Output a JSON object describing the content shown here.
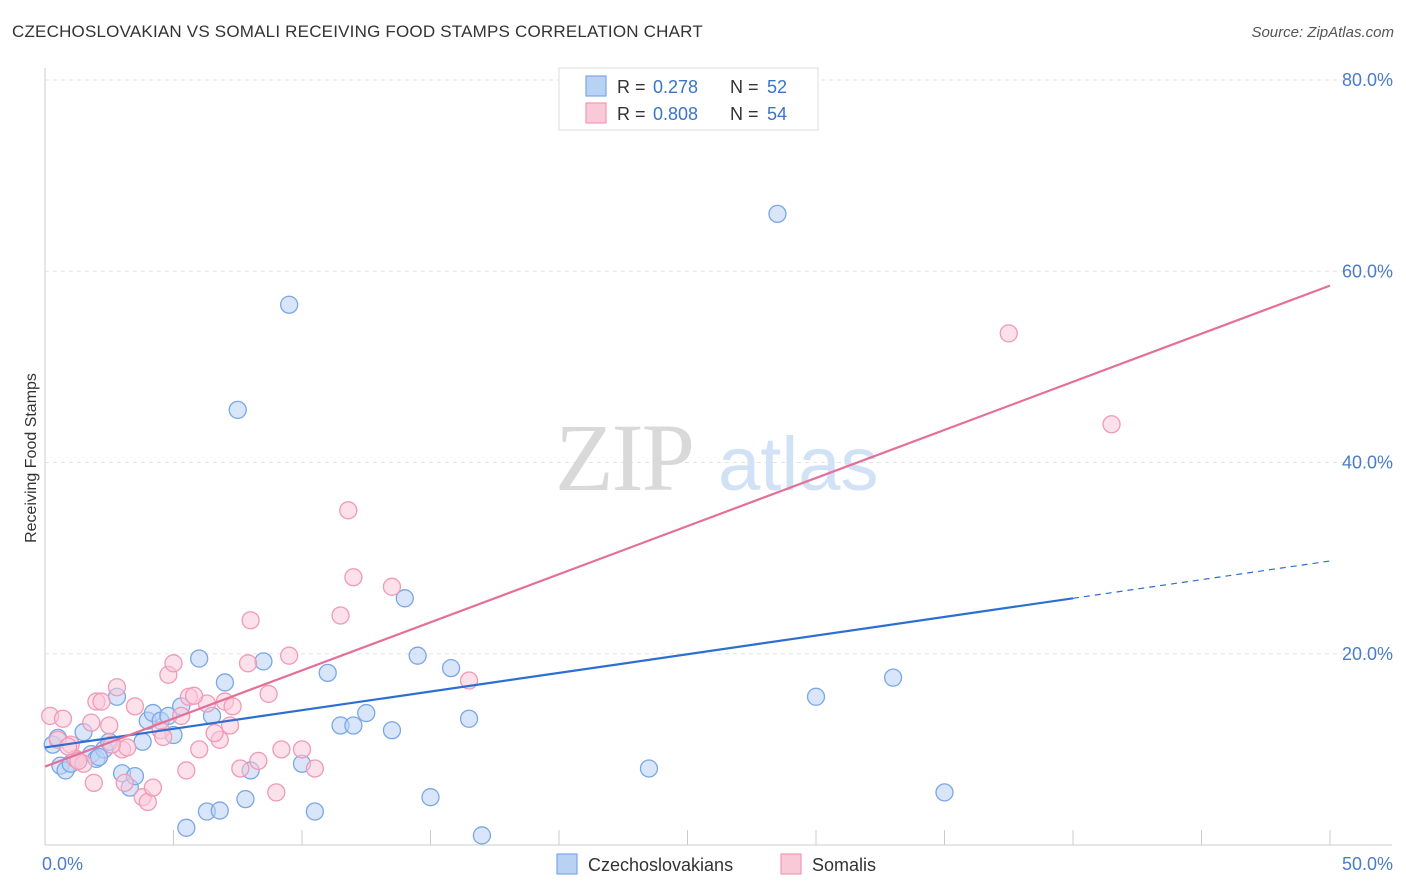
{
  "title": "CZECHOSLOVAKIAN VS SOMALI RECEIVING FOOD STAMPS CORRELATION CHART",
  "source": "Source: ZipAtlas.com",
  "watermark": {
    "zip": "ZIP",
    "atlas": "atlas"
  },
  "legend": {
    "series1": {
      "r_label": "R = ",
      "r_value": "0.278",
      "n_label": "N = ",
      "n_value": "52"
    },
    "series2": {
      "r_label": "R = ",
      "r_value": "0.808",
      "n_label": "N = ",
      "n_value": "54"
    }
  },
  "chart_data": {
    "type": "scatter",
    "title": "CZECHOSLOVAKIAN VS SOMALI RECEIVING FOOD STAMPS CORRELATION CHART",
    "xlabel": "",
    "ylabel": "Receiving Food Stamps",
    "xlim": [
      0,
      50
    ],
    "ylim": [
      0,
      80
    ],
    "x_tick_labels": [
      "0.0%",
      "50.0%"
    ],
    "y_tick_values": [
      20,
      40,
      60,
      80
    ],
    "y_tick_labels": [
      "20.0%",
      "40.0%",
      "60.0%",
      "80.0%"
    ],
    "grid": true,
    "legend_position": "top-center",
    "series": [
      {
        "name": "Czechoslovakians",
        "color": "#7aa7e6",
        "fill": "#b9d2f4",
        "trend_color": "#2c6fd1",
        "trend": {
          "x0": 0,
          "y0": 10.2,
          "x1": 40,
          "y1": 25.8,
          "dashed_to_x": 50,
          "dashed_to_y": 29.7
        },
        "points": [
          [
            0.3,
            10.5
          ],
          [
            0.5,
            11.2
          ],
          [
            0.6,
            8.3
          ],
          [
            0.8,
            7.8
          ],
          [
            1.0,
            8.5
          ],
          [
            1.2,
            9.0
          ],
          [
            1.5,
            11.8
          ],
          [
            1.8,
            9.5
          ],
          [
            2.0,
            9.0
          ],
          [
            2.3,
            10.0
          ],
          [
            2.5,
            10.8
          ],
          [
            2.8,
            15.5
          ],
          [
            3.0,
            7.5
          ],
          [
            3.3,
            6.0
          ],
          [
            3.5,
            7.2
          ],
          [
            3.8,
            10.8
          ],
          [
            4.0,
            13.0
          ],
          [
            4.2,
            13.8
          ],
          [
            4.5,
            13.0
          ],
          [
            4.8,
            13.5
          ],
          [
            5.0,
            11.5
          ],
          [
            5.3,
            14.5
          ],
          [
            6.0,
            19.5
          ],
          [
            6.5,
            13.5
          ],
          [
            7.0,
            17.0
          ],
          [
            7.5,
            45.5
          ],
          [
            8.0,
            7.8
          ],
          [
            8.5,
            19.2
          ],
          [
            9.5,
            56.5
          ],
          [
            10.0,
            8.5
          ],
          [
            10.5,
            3.5
          ],
          [
            11.0,
            18.0
          ],
          [
            11.5,
            12.5
          ],
          [
            12.0,
            12.5
          ],
          [
            12.5,
            13.8
          ],
          [
            13.5,
            12.0
          ],
          [
            14.0,
            25.8
          ],
          [
            14.5,
            19.8
          ],
          [
            15.0,
            5.0
          ],
          [
            15.8,
            18.5
          ],
          [
            16.5,
            13.2
          ],
          [
            17.0,
            1.0
          ],
          [
            5.5,
            1.8
          ],
          [
            6.3,
            3.5
          ],
          [
            6.8,
            3.6
          ],
          [
            7.8,
            4.8
          ],
          [
            23.5,
            8.0
          ],
          [
            28.5,
            66.0
          ],
          [
            30.0,
            15.5
          ],
          [
            33.0,
            17.5
          ],
          [
            35.0,
            5.5
          ],
          [
            2.1,
            9.2
          ]
        ]
      },
      {
        "name": "Somalis",
        "color": "#f09ab6",
        "fill": "#f9c9d8",
        "trend_color": "#e4709a",
        "trend": {
          "x0": 0,
          "y0": 8.2,
          "x1": 50,
          "y1": 58.5
        },
        "points": [
          [
            0.2,
            13.5
          ],
          [
            0.5,
            11.0
          ],
          [
            0.7,
            13.2
          ],
          [
            1.0,
            10.5
          ],
          [
            1.2,
            9.0
          ],
          [
            1.5,
            8.5
          ],
          [
            1.8,
            12.8
          ],
          [
            2.0,
            15.0
          ],
          [
            2.2,
            15.0
          ],
          [
            2.5,
            12.5
          ],
          [
            2.8,
            16.5
          ],
          [
            3.0,
            10.0
          ],
          [
            3.2,
            10.2
          ],
          [
            3.5,
            14.5
          ],
          [
            3.8,
            5.0
          ],
          [
            4.0,
            4.5
          ],
          [
            4.2,
            6.0
          ],
          [
            4.5,
            12.0
          ],
          [
            4.8,
            17.8
          ],
          [
            5.0,
            19.0
          ],
          [
            5.3,
            13.5
          ],
          [
            5.6,
            15.5
          ],
          [
            6.0,
            10.0
          ],
          [
            6.3,
            14.8
          ],
          [
            6.8,
            11.0
          ],
          [
            7.0,
            15.0
          ],
          [
            7.3,
            14.5
          ],
          [
            7.6,
            8.0
          ],
          [
            7.9,
            19.0
          ],
          [
            8.0,
            23.5
          ],
          [
            8.3,
            8.8
          ],
          [
            8.7,
            15.8
          ],
          [
            9.2,
            10.0
          ],
          [
            9.5,
            19.8
          ],
          [
            10.0,
            10.0
          ],
          [
            10.5,
            8.0
          ],
          [
            11.5,
            24.0
          ],
          [
            11.8,
            35.0
          ],
          [
            12.0,
            28.0
          ],
          [
            13.5,
            27.0
          ],
          [
            3.1,
            6.5
          ],
          [
            4.6,
            11.3
          ],
          [
            5.8,
            15.6
          ],
          [
            2.6,
            10.5
          ],
          [
            1.3,
            8.8
          ],
          [
            1.9,
            6.5
          ],
          [
            6.6,
            11.7
          ],
          [
            7.2,
            12.5
          ],
          [
            9.0,
            5.5
          ],
          [
            16.5,
            17.2
          ],
          [
            37.5,
            53.5
          ],
          [
            41.5,
            44.0
          ],
          [
            0.9,
            10.3
          ],
          [
            5.5,
            7.8
          ]
        ]
      }
    ]
  }
}
